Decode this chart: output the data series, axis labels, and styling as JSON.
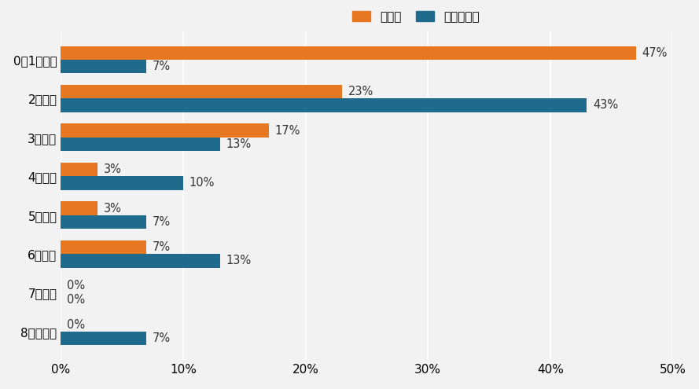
{
  "categories": [
    "8時間以上",
    "7時間台",
    "6時間台",
    "5時間台",
    "4時間台",
    "3時間台",
    "2時間台",
    "0～1時間台"
  ],
  "orange_values": [
    0,
    0,
    7,
    3,
    3,
    17,
    23,
    47
  ],
  "blue_values": [
    7,
    0,
    13,
    7,
    10,
    13,
    43,
    7
  ],
  "orange_color": "#E87722",
  "blue_color": "#1F6B8E",
  "legend_orange": "平常時",
  "legend_blue": "本試験直前",
  "xlim": [
    0,
    50
  ],
  "xtick_values": [
    0,
    10,
    20,
    30,
    40,
    50
  ],
  "xtick_labels": [
    "0%",
    "10%",
    "20%",
    "30%",
    "40%",
    "50%"
  ],
  "background_color": "#F2F2F2",
  "bar_height": 0.35,
  "label_fontsize": 10.5,
  "tick_fontsize": 11,
  "legend_fontsize": 11
}
